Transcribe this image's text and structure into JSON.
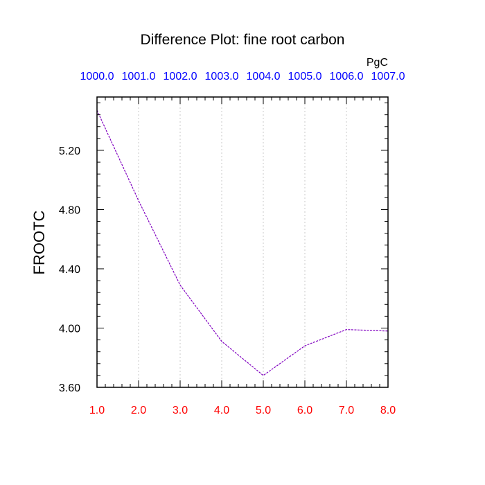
{
  "colors": {
    "bottom_ticks": "#ff0000",
    "top_ticks": "#0000ff",
    "line": "#8000c0",
    "grid": "#c8c8c8",
    "axis": "#000000"
  },
  "chart_data": {
    "type": "line",
    "title": "Difference Plot: fine root carbon",
    "units": "PgC",
    "ylabel": "FROOTC",
    "xlabel": "",
    "x": [
      1,
      2,
      3,
      4,
      5,
      6,
      7,
      8
    ],
    "x_tick_labels": [
      "1.0",
      "2.0",
      "3.0",
      "4.0",
      "5.0",
      "6.0",
      "7.0",
      "8.0"
    ],
    "top_tick_labels": [
      "1000.0",
      "1001.0",
      "1002.0",
      "1003.0",
      "1004.0",
      "1005.0",
      "1006.0",
      "1007.0"
    ],
    "series": [
      {
        "values": [
          5.47,
          4.86,
          4.29,
          3.91,
          3.68,
          3.88,
          3.99,
          3.98
        ]
      }
    ],
    "y_ticks": [
      3.6,
      4.0,
      4.4,
      4.8,
      5.2
    ],
    "y_tick_labels": [
      "3.60",
      "4.00",
      "4.40",
      "4.80",
      "5.20"
    ],
    "xlim": [
      1,
      8
    ],
    "ylim": [
      3.6,
      5.56
    ],
    "grid": "vertical dotted"
  }
}
